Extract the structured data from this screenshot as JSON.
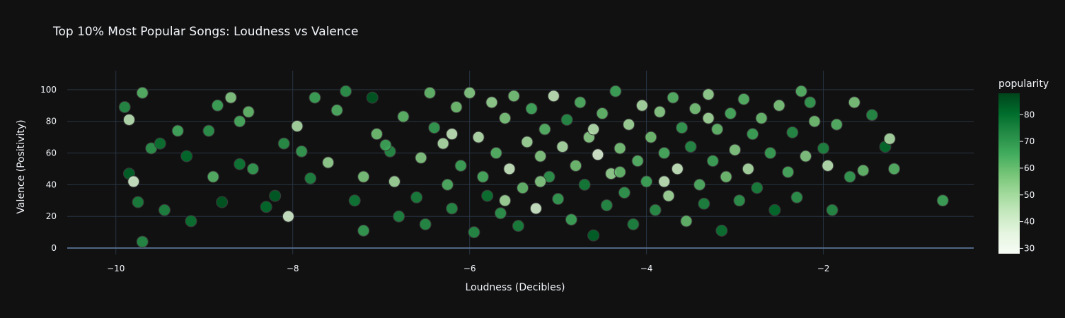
{
  "chart_data": {
    "type": "scatter",
    "title": "Top 10% Most Popular Songs: Loudness vs Valence",
    "xlabel": "Loudness (Decibles)",
    "ylabel": "Valence (Positivity)",
    "xlim": [
      -10.55,
      -0.3
    ],
    "ylim": [
      -4,
      112
    ],
    "x_ticks": [
      -10,
      -8,
      -6,
      -4,
      -2
    ],
    "y_ticks": [
      0,
      20,
      40,
      60,
      80,
      100
    ],
    "x_tick_labels": [
      "−10",
      "−8",
      "−6",
      "−4",
      "−2"
    ],
    "y_tick_labels": [
      "0",
      "20",
      "40",
      "60",
      "80",
      "100"
    ],
    "grid": true,
    "colorbar": {
      "title": "popularity",
      "range": [
        28,
        88
      ],
      "ticks": [
        30,
        40,
        50,
        60,
        70,
        80
      ],
      "colorscale": "Greens"
    },
    "points": [
      [
        -9.9,
        89,
        72
      ],
      [
        -9.85,
        81,
        45
      ],
      [
        -9.7,
        98,
        62
      ],
      [
        -9.6,
        63,
        70
      ],
      [
        -9.75,
        29,
        75
      ],
      [
        -9.7,
        4,
        72
      ],
      [
        -9.85,
        47,
        82
      ],
      [
        -9.8,
        42,
        40
      ],
      [
        -9.5,
        66,
        78
      ],
      [
        -9.45,
        24,
        74
      ],
      [
        -9.3,
        74,
        65
      ],
      [
        -9.2,
        58,
        80
      ],
      [
        -9.15,
        17,
        78
      ],
      [
        -8.95,
        74,
        70
      ],
      [
        -8.85,
        90,
        66
      ],
      [
        -8.7,
        95,
        55
      ],
      [
        -8.6,
        80,
        64
      ],
      [
        -8.5,
        86,
        60
      ],
      [
        -8.45,
        50,
        68
      ],
      [
        -8.3,
        26,
        80
      ],
      [
        -8.8,
        29,
        84
      ],
      [
        -8.6,
        53,
        77
      ],
      [
        -8.2,
        33,
        83
      ],
      [
        -8.1,
        66,
        71
      ],
      [
        -8.05,
        20,
        40
      ],
      [
        -7.95,
        77,
        48
      ],
      [
        -7.9,
        61,
        68
      ],
      [
        -7.8,
        44,
        74
      ],
      [
        -7.75,
        95,
        66
      ],
      [
        -7.6,
        54,
        52
      ],
      [
        -7.5,
        87,
        63
      ],
      [
        -7.4,
        99,
        70
      ],
      [
        -7.3,
        30,
        77
      ],
      [
        -7.2,
        11,
        68
      ],
      [
        -7.1,
        95,
        84
      ],
      [
        -7.05,
        72,
        58
      ],
      [
        -6.9,
        61,
        72
      ],
      [
        -6.85,
        42,
        50
      ],
      [
        -6.8,
        20,
        74
      ],
      [
        -6.75,
        83,
        61
      ],
      [
        -6.6,
        32,
        75
      ],
      [
        -6.55,
        57,
        55
      ],
      [
        -6.5,
        15,
        72
      ],
      [
        -6.45,
        98,
        60
      ],
      [
        -6.4,
        76,
        68
      ],
      [
        -6.3,
        66,
        47
      ],
      [
        -6.25,
        40,
        63
      ],
      [
        -6.2,
        25,
        72
      ],
      [
        -6.15,
        89,
        58
      ],
      [
        -6.1,
        52,
        66
      ],
      [
        -6.0,
        98,
        55
      ],
      [
        -5.95,
        10,
        72
      ],
      [
        -5.9,
        70,
        46
      ],
      [
        -5.85,
        45,
        64
      ],
      [
        -5.8,
        33,
        78
      ],
      [
        -5.75,
        92,
        52
      ],
      [
        -5.7,
        60,
        62
      ],
      [
        -5.65,
        22,
        70
      ],
      [
        -5.6,
        82,
        56
      ],
      [
        -5.55,
        50,
        42
      ],
      [
        -5.5,
        96,
        57
      ],
      [
        -5.45,
        14,
        75
      ],
      [
        -5.4,
        38,
        60
      ],
      [
        -5.35,
        67,
        50
      ],
      [
        -5.3,
        88,
        65
      ],
      [
        -5.25,
        25,
        40
      ],
      [
        -5.2,
        58,
        55
      ],
      [
        -5.15,
        75,
        62
      ],
      [
        -5.1,
        45,
        70
      ],
      [
        -5.05,
        96,
        44
      ],
      [
        -5.0,
        31,
        68
      ],
      [
        -4.95,
        64,
        48
      ],
      [
        -4.9,
        81,
        72
      ],
      [
        -4.85,
        18,
        66
      ],
      [
        -4.8,
        52,
        58
      ],
      [
        -4.75,
        92,
        63
      ],
      [
        -4.7,
        40,
        76
      ],
      [
        -4.65,
        70,
        54
      ],
      [
        -4.6,
        8,
        82
      ],
      [
        -4.55,
        59,
        38
      ],
      [
        -4.5,
        85,
        60
      ],
      [
        -4.45,
        27,
        72
      ],
      [
        -4.4,
        47,
        52
      ],
      [
        -4.35,
        99,
        66
      ],
      [
        -4.3,
        63,
        57
      ],
      [
        -4.25,
        35,
        69
      ],
      [
        -4.2,
        78,
        50
      ],
      [
        -4.15,
        15,
        74
      ],
      [
        -4.1,
        55,
        62
      ],
      [
        -4.05,
        90,
        48
      ],
      [
        -4.0,
        42,
        66
      ],
      [
        -3.95,
        70,
        58
      ],
      [
        -3.9,
        24,
        71
      ],
      [
        -3.85,
        86,
        54
      ],
      [
        -3.8,
        60,
        64
      ],
      [
        -3.75,
        33,
        50
      ],
      [
        -3.7,
        95,
        62
      ],
      [
        -3.65,
        50,
        42
      ],
      [
        -3.6,
        76,
        68
      ],
      [
        -3.55,
        17,
        60
      ],
      [
        -3.5,
        64,
        72
      ],
      [
        -3.45,
        88,
        57
      ],
      [
        -3.4,
        40,
        63
      ],
      [
        -3.35,
        28,
        74
      ],
      [
        -3.3,
        97,
        52
      ],
      [
        -3.25,
        55,
        66
      ],
      [
        -3.2,
        75,
        60
      ],
      [
        -3.15,
        11,
        78
      ],
      [
        -3.1,
        45,
        58
      ],
      [
        -3.05,
        85,
        64
      ],
      [
        -3.0,
        62,
        55
      ],
      [
        -2.95,
        30,
        70
      ],
      [
        -2.9,
        94,
        62
      ],
      [
        -2.85,
        50,
        48
      ],
      [
        -2.8,
        72,
        66
      ],
      [
        -2.75,
        38,
        75
      ],
      [
        -2.7,
        82,
        59
      ],
      [
        -2.6,
        60,
        67
      ],
      [
        -2.55,
        24,
        80
      ],
      [
        -2.5,
        90,
        56
      ],
      [
        -2.4,
        48,
        64
      ],
      [
        -2.35,
        73,
        72
      ],
      [
        -2.3,
        32,
        70
      ],
      [
        -2.25,
        99,
        62
      ],
      [
        -2.2,
        58,
        55
      ],
      [
        -2.15,
        92,
        68
      ],
      [
        -2.1,
        80,
        58
      ],
      [
        -2.0,
        63,
        74
      ],
      [
        -1.95,
        52,
        45
      ],
      [
        -1.9,
        24,
        72
      ],
      [
        -1.85,
        78,
        62
      ],
      [
        -1.7,
        45,
        68
      ],
      [
        -1.65,
        92,
        56
      ],
      [
        -1.55,
        49,
        60
      ],
      [
        -1.45,
        84,
        72
      ],
      [
        -1.3,
        64,
        80
      ],
      [
        -1.25,
        69,
        48
      ],
      [
        -1.2,
        50,
        62
      ],
      [
        -0.65,
        30,
        66
      ],
      [
        -8.9,
        45,
        62
      ],
      [
        -7.2,
        45,
        56
      ],
      [
        -6.95,
        65,
        66
      ],
      [
        -5.2,
        42,
        55
      ],
      [
        -4.3,
        48,
        60
      ],
      [
        -3.8,
        42,
        44
      ],
      [
        -5.6,
        30,
        50
      ],
      [
        -6.2,
        72,
        44
      ],
      [
        -4.6,
        75,
        46
      ],
      [
        -3.3,
        82,
        50
      ]
    ]
  }
}
